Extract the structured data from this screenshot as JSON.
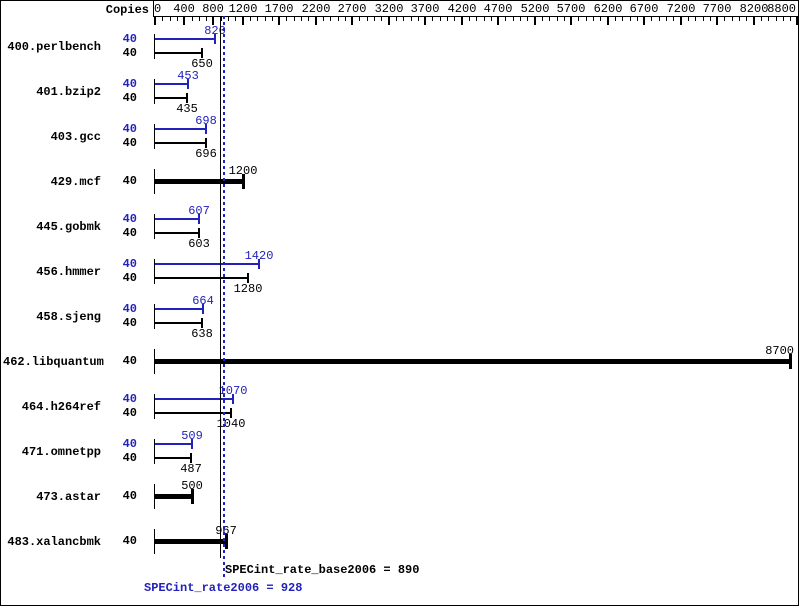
{
  "colors": {
    "peak_blue": "#2222bb",
    "base_black": "#000000",
    "background": "#ffffff"
  },
  "chart_data": {
    "type": "bar",
    "orientation": "horizontal",
    "copies_header": "Copies",
    "x_ticks": [
      0,
      400,
      800,
      1200,
      1700,
      2200,
      2700,
      3200,
      3700,
      4200,
      4700,
      5200,
      5700,
      6200,
      6700,
      7200,
      7700,
      8200,
      8800
    ],
    "x_range": [
      0,
      8800
    ],
    "minor_tick_step": 100,
    "grid": false,
    "benchmarks": [
      {
        "name": "400.perlbench",
        "copies": 40,
        "peak": 820,
        "base": 650
      },
      {
        "name": "401.bzip2",
        "copies": 40,
        "peak": 453,
        "base": 435
      },
      {
        "name": "403.gcc",
        "copies": 40,
        "peak": 698,
        "base": 696
      },
      {
        "name": "429.mcf",
        "copies": 40,
        "single": 1200
      },
      {
        "name": "445.gobmk",
        "copies": 40,
        "peak": 607,
        "base": 603
      },
      {
        "name": "456.hmmer",
        "copies": 40,
        "peak": 1420,
        "base": 1280
      },
      {
        "name": "458.sjeng",
        "copies": 40,
        "peak": 664,
        "base": 638
      },
      {
        "name": "462.libquantum",
        "copies": 40,
        "single": 8700
      },
      {
        "name": "464.h264ref",
        "copies": 40,
        "peak": 1070,
        "base": 1040
      },
      {
        "name": "471.omnetpp",
        "copies": 40,
        "peak": 509,
        "base": 487
      },
      {
        "name": "473.astar",
        "copies": 40,
        "single": 500
      },
      {
        "name": "483.xalancbmk",
        "copies": 40,
        "single": 967
      }
    ],
    "reference_lines": [
      {
        "name": "base",
        "value": 890,
        "style": "solid",
        "color": "#000000"
      },
      {
        "name": "peak",
        "value": 928,
        "style": "dotted",
        "color": "#2222bb"
      }
    ],
    "summary": {
      "base_label": "SPECint_rate_base2006 = 890",
      "peak_label": "SPECint_rate2006 = 928"
    }
  }
}
